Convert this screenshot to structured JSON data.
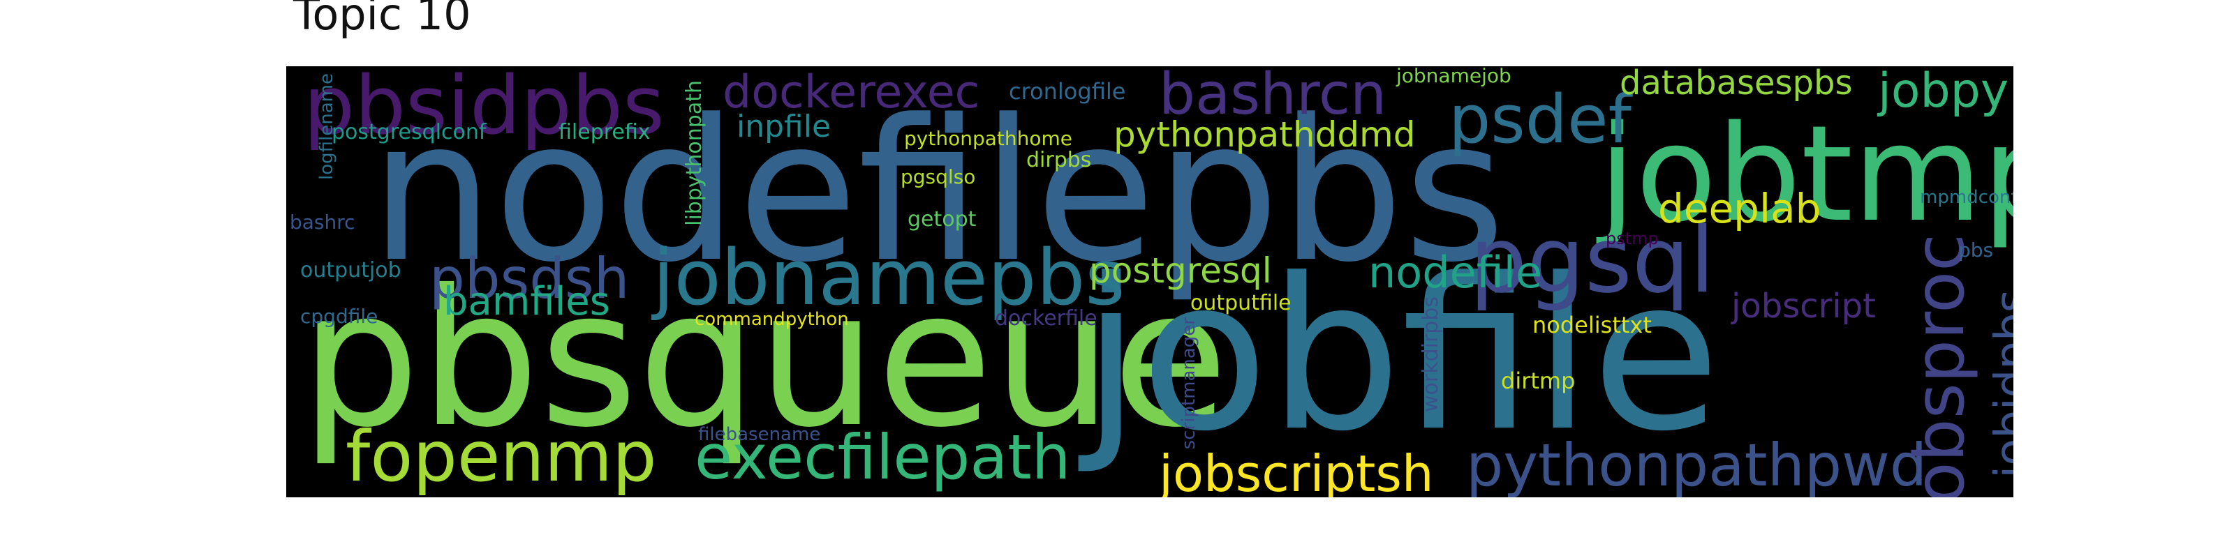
{
  "title": "Topic 10",
  "words": [
    {
      "text": "nodefilepbs",
      "color": "#33638d"
    },
    {
      "text": "pbsqueue",
      "color": "#7ad151"
    },
    {
      "text": "jobfile",
      "color": "#2c728e"
    },
    {
      "text": "jobtmp",
      "color": "#3bbb75"
    },
    {
      "text": "pbsidpbs",
      "color": "#481a6c"
    },
    {
      "text": "jobnamepbs",
      "color": "#2a788e"
    },
    {
      "text": "pgsql",
      "color": "#3e4a89"
    },
    {
      "text": "fopenmp",
      "color": "#a5db36"
    },
    {
      "text": "execfilepath",
      "color": "#35b779"
    },
    {
      "text": "pythonpathpwd",
      "color": "#3b528b"
    },
    {
      "text": "bashrcn",
      "color": "#46327e"
    },
    {
      "text": "psdef",
      "color": "#2d708e"
    },
    {
      "text": "dockerexec",
      "color": "#482878"
    },
    {
      "text": "pbsdsh",
      "color": "#3b528b"
    },
    {
      "text": "jobscriptsh",
      "color": "#fde725"
    },
    {
      "text": "jobsproc",
      "color": "#414487"
    },
    {
      "text": "jobidpbs",
      "color": "#3b528b"
    },
    {
      "text": "nodefile",
      "color": "#20a386"
    },
    {
      "text": "jobpy",
      "color": "#35b779"
    },
    {
      "text": "bamfiles",
      "color": "#22a884"
    },
    {
      "text": "postgresql",
      "color": "#8fd744"
    },
    {
      "text": "deeplab",
      "color": "#d8e219"
    },
    {
      "text": "pythonpathddmd",
      "color": "#addc30"
    },
    {
      "text": "databasespbs",
      "color": "#93d741"
    },
    {
      "text": "jobscript",
      "color": "#472d7b"
    },
    {
      "text": "inpfile",
      "color": "#23898e"
    },
    {
      "text": "libpythonpath",
      "color": "#4ac16d"
    },
    {
      "text": "cronlogfile",
      "color": "#31688e"
    },
    {
      "text": "postgresqlconf",
      "color": "#1e9b8a"
    },
    {
      "text": "fileprefix",
      "color": "#28ae80"
    },
    {
      "text": "logfilename",
      "color": "#2c728e"
    },
    {
      "text": "bashrc",
      "color": "#39568c"
    },
    {
      "text": "outputjob",
      "color": "#277f8e"
    },
    {
      "text": "cpgdfile",
      "color": "#31688e"
    },
    {
      "text": "pythonpathhome",
      "color": "#c2df23"
    },
    {
      "text": "dirpbs",
      "color": "#a0da39"
    },
    {
      "text": "pgsqlso",
      "color": "#b5de2b"
    },
    {
      "text": "getopt",
      "color": "#5ec962"
    },
    {
      "text": "jobnamejob",
      "color": "#7fd34e"
    },
    {
      "text": "mpmdconf",
      "color": "#2a788e"
    },
    {
      "text": "pstmp",
      "color": "#440154"
    },
    {
      "text": "pbs",
      "color": "#33638d"
    },
    {
      "text": "outputfile",
      "color": "#cde11d"
    },
    {
      "text": "nodelisttxt",
      "color": "#dde318"
    },
    {
      "text": "dirtmp",
      "color": "#c8e020"
    },
    {
      "text": "commandpython",
      "color": "#e5e419"
    },
    {
      "text": "dockerfile",
      "color": "#443983"
    },
    {
      "text": "filebasename",
      "color": "#3b528b"
    },
    {
      "text": "scriptmanager",
      "color": "#3e4a89"
    },
    {
      "text": "workdirpbs",
      "color": "#3b528b"
    }
  ]
}
